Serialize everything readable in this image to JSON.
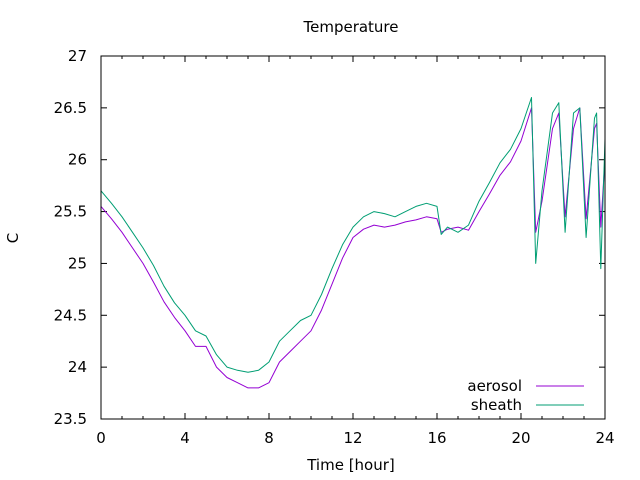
{
  "chart_data": {
    "type": "line",
    "title": "Temperature",
    "xlabel": "Time [hour]",
    "ylabel": "C",
    "xlim": [
      0,
      24
    ],
    "ylim": [
      23.5,
      27
    ],
    "xticks": [
      0,
      4,
      8,
      12,
      16,
      20,
      24
    ],
    "yticks": [
      23.5,
      24,
      24.5,
      25,
      25.5,
      26,
      26.5,
      27
    ],
    "ytick_labels": [
      "23.5",
      "24",
      "24.5",
      "25",
      "25.5",
      "26",
      "26.5",
      "27"
    ],
    "grid": false,
    "legend_position": "bottom-right",
    "series": [
      {
        "name": "aerosol",
        "color": "#9400d3",
        "x": [
          0,
          0.5,
          1,
          1.5,
          2,
          2.5,
          3,
          3.5,
          4,
          4.5,
          5,
          5.5,
          6,
          6.5,
          7,
          7.5,
          8,
          8.5,
          9,
          9.5,
          10,
          10.5,
          11,
          11.5,
          12,
          12.5,
          13,
          13.5,
          14,
          14.5,
          15,
          15.5,
          16,
          16.2,
          16.5,
          17,
          17.5,
          18,
          18.5,
          19,
          19.5,
          20,
          20.5,
          20.7,
          21,
          21.5,
          21.8,
          22.1,
          22.5,
          22.8,
          23.1,
          23.5,
          23.6,
          23.8,
          24
        ],
        "y": [
          25.55,
          25.43,
          25.3,
          25.15,
          25.0,
          24.82,
          24.63,
          24.48,
          24.35,
          24.2,
          24.2,
          24.0,
          23.9,
          23.85,
          23.8,
          23.8,
          23.85,
          24.05,
          24.15,
          24.25,
          24.35,
          24.55,
          24.8,
          25.05,
          25.25,
          25.33,
          25.37,
          25.35,
          25.37,
          25.4,
          25.42,
          25.45,
          25.43,
          25.3,
          25.33,
          25.35,
          25.32,
          25.5,
          25.67,
          25.85,
          25.98,
          26.18,
          26.5,
          25.3,
          25.6,
          26.3,
          26.45,
          25.45,
          26.3,
          26.5,
          25.43,
          26.3,
          26.35,
          25.35,
          26.02
        ]
      },
      {
        "name": "sheath",
        "color": "#009e73",
        "x": [
          0,
          0.5,
          1,
          1.5,
          2,
          2.5,
          3,
          3.5,
          4,
          4.5,
          5,
          5.5,
          6,
          6.5,
          7,
          7.5,
          8,
          8.5,
          9,
          9.5,
          10,
          10.5,
          11,
          11.5,
          12,
          12.5,
          13,
          13.5,
          14,
          14.5,
          15,
          15.5,
          16,
          16.2,
          16.5,
          17,
          17.5,
          18,
          18.5,
          19,
          19.5,
          20,
          20.5,
          20.7,
          21,
          21.5,
          21.8,
          22.1,
          22.5,
          22.8,
          23.1,
          23.5,
          23.6,
          23.8,
          24
        ],
        "y": [
          25.7,
          25.58,
          25.45,
          25.3,
          25.15,
          24.98,
          24.78,
          24.62,
          24.5,
          24.35,
          24.3,
          24.12,
          24.0,
          23.97,
          23.95,
          23.97,
          24.05,
          24.25,
          24.35,
          24.45,
          24.5,
          24.7,
          24.95,
          25.18,
          25.35,
          25.45,
          25.5,
          25.48,
          25.45,
          25.5,
          25.55,
          25.58,
          25.55,
          25.28,
          25.35,
          25.3,
          25.37,
          25.6,
          25.78,
          25.97,
          26.1,
          26.3,
          26.6,
          25.0,
          25.7,
          26.45,
          26.55,
          25.3,
          26.45,
          26.5,
          25.25,
          26.4,
          26.45,
          24.95,
          26.2
        ]
      }
    ]
  }
}
